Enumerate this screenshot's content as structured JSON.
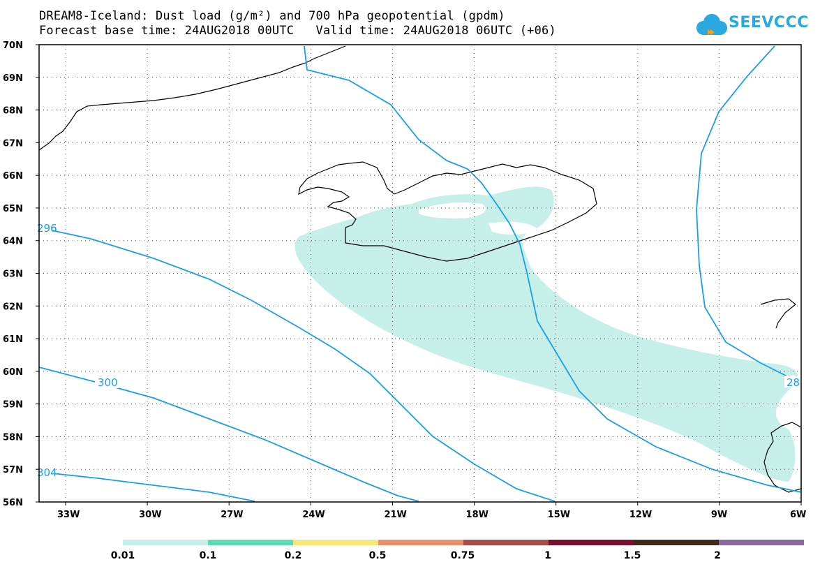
{
  "header": {
    "title_line1": "DREAM8-Iceland: Dust load (g/m²) and 700 hPa geopotential (gpdm)",
    "title_line2": "Forecast base time: 24AUG2018 00UTC   Valid time: 24AUG2018 06UTC (+06)"
  },
  "logo": {
    "text": "SEEVCCC",
    "icon": "cloud-icon"
  },
  "map": {
    "lat_labels": [
      "70N",
      "69N",
      "68N",
      "67N",
      "66N",
      "65N",
      "64N",
      "63N",
      "62N",
      "61N",
      "60N",
      "59N",
      "58N",
      "57N",
      "56N"
    ],
    "lon_labels": [
      "33W",
      "30W",
      "27W",
      "24W",
      "21W",
      "18W",
      "15W",
      "12W",
      "9W",
      "6W"
    ],
    "contour_labels": [
      "296",
      "300",
      "304",
      "28"
    ],
    "contour_color": "#1a9fe6",
    "dust_color": "#c6efe9",
    "coast_color": "#000000"
  },
  "colorbar": {
    "labels": [
      "0.01",
      "0.1",
      "0.2",
      "0.5",
      "0.75",
      "1",
      "1.5",
      "2"
    ],
    "colors": [
      "#c6efe9",
      "#5ed9b4",
      "#f5e87a",
      "#e8906a",
      "#a64f4a",
      "#7a0f2e",
      "#3d2a1a",
      "#8a6a9e"
    ]
  }
}
